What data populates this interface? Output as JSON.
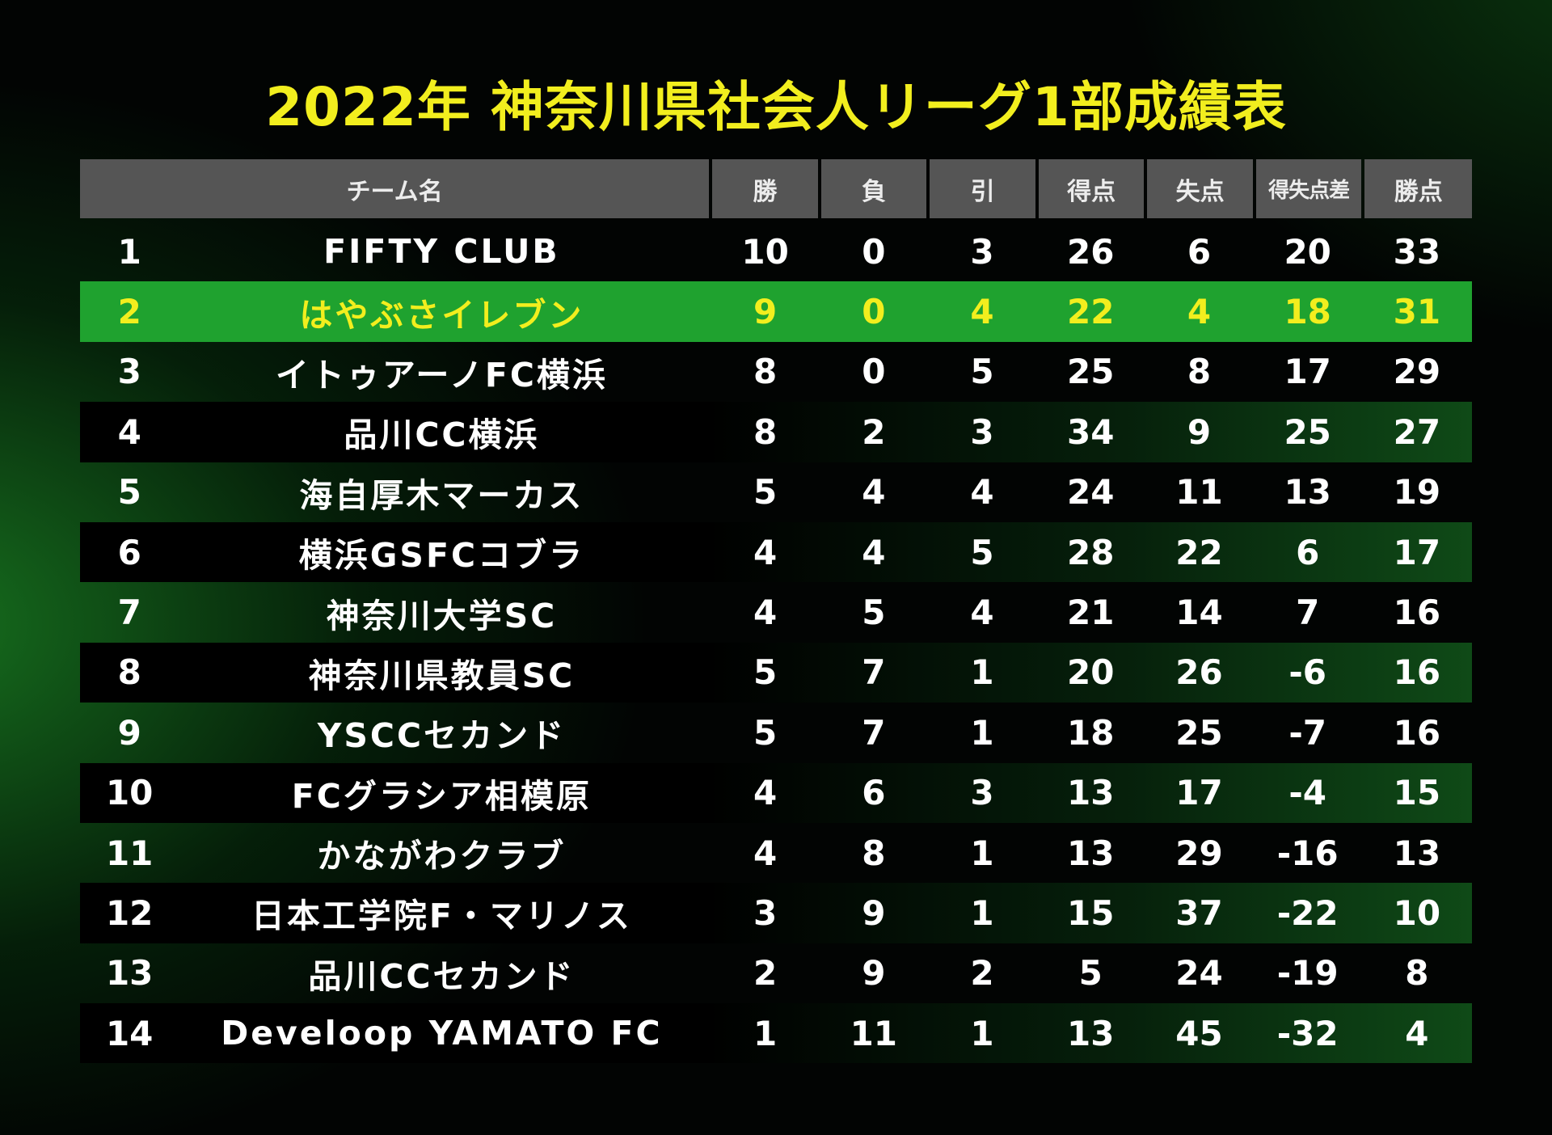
{
  "title": "2022年 神奈川県社会人リーグ1部成績表",
  "header": {
    "team": "チーム名",
    "win": "勝",
    "loss": "負",
    "draw": "引",
    "goals_for": "得点",
    "goals_against": "失点",
    "goal_diff": "得失点差",
    "points": "勝点"
  },
  "highlight_color": "#1fa22f",
  "title_color": "#f2ee1e",
  "rows": [
    {
      "rank": "1",
      "team": "FIFTY CLUB",
      "win": "10",
      "loss": "0",
      "draw": "3",
      "gf": "26",
      "ga": "6",
      "gd": "20",
      "pts": "33"
    },
    {
      "rank": "2",
      "team": "はやぶさイレブン",
      "win": "9",
      "loss": "0",
      "draw": "4",
      "gf": "22",
      "ga": "4",
      "gd": "18",
      "pts": "31"
    },
    {
      "rank": "3",
      "team": "イトゥアーノFC横浜",
      "win": "8",
      "loss": "0",
      "draw": "5",
      "gf": "25",
      "ga": "8",
      "gd": "17",
      "pts": "29"
    },
    {
      "rank": "4",
      "team": "品川CC横浜",
      "win": "8",
      "loss": "2",
      "draw": "3",
      "gf": "34",
      "ga": "9",
      "gd": "25",
      "pts": "27"
    },
    {
      "rank": "5",
      "team": "海自厚木マーカス",
      "win": "5",
      "loss": "4",
      "draw": "4",
      "gf": "24",
      "ga": "11",
      "gd": "13",
      "pts": "19"
    },
    {
      "rank": "6",
      "team": "横浜GSFCコブラ",
      "win": "4",
      "loss": "4",
      "draw": "5",
      "gf": "28",
      "ga": "22",
      "gd": "6",
      "pts": "17"
    },
    {
      "rank": "7",
      "team": "神奈川大学SC",
      "win": "4",
      "loss": "5",
      "draw": "4",
      "gf": "21",
      "ga": "14",
      "gd": "7",
      "pts": "16"
    },
    {
      "rank": "8",
      "team": "神奈川県教員SC",
      "win": "5",
      "loss": "7",
      "draw": "1",
      "gf": "20",
      "ga": "26",
      "gd": "-6",
      "pts": "16"
    },
    {
      "rank": "9",
      "team": "YSCCセカンド",
      "win": "5",
      "loss": "7",
      "draw": "1",
      "gf": "18",
      "ga": "25",
      "gd": "-7",
      "pts": "16"
    },
    {
      "rank": "10",
      "team": "FCグラシア相模原",
      "win": "4",
      "loss": "6",
      "draw": "3",
      "gf": "13",
      "ga": "17",
      "gd": "-4",
      "pts": "15"
    },
    {
      "rank": "11",
      "team": "かながわクラブ",
      "win": "4",
      "loss": "8",
      "draw": "1",
      "gf": "13",
      "ga": "29",
      "gd": "-16",
      "pts": "13"
    },
    {
      "rank": "12",
      "team": "日本工学院F・マリノス",
      "win": "3",
      "loss": "9",
      "draw": "1",
      "gf": "15",
      "ga": "37",
      "gd": "-22",
      "pts": "10"
    },
    {
      "rank": "13",
      "team": "品川CCセカンド",
      "win": "2",
      "loss": "9",
      "draw": "2",
      "gf": "5",
      "ga": "24",
      "gd": "-19",
      "pts": "8"
    },
    {
      "rank": "14",
      "team": "Develoop YAMATO FC",
      "win": "1",
      "loss": "11",
      "draw": "1",
      "gf": "13",
      "ga": "45",
      "gd": "-32",
      "pts": "4"
    }
  ]
}
